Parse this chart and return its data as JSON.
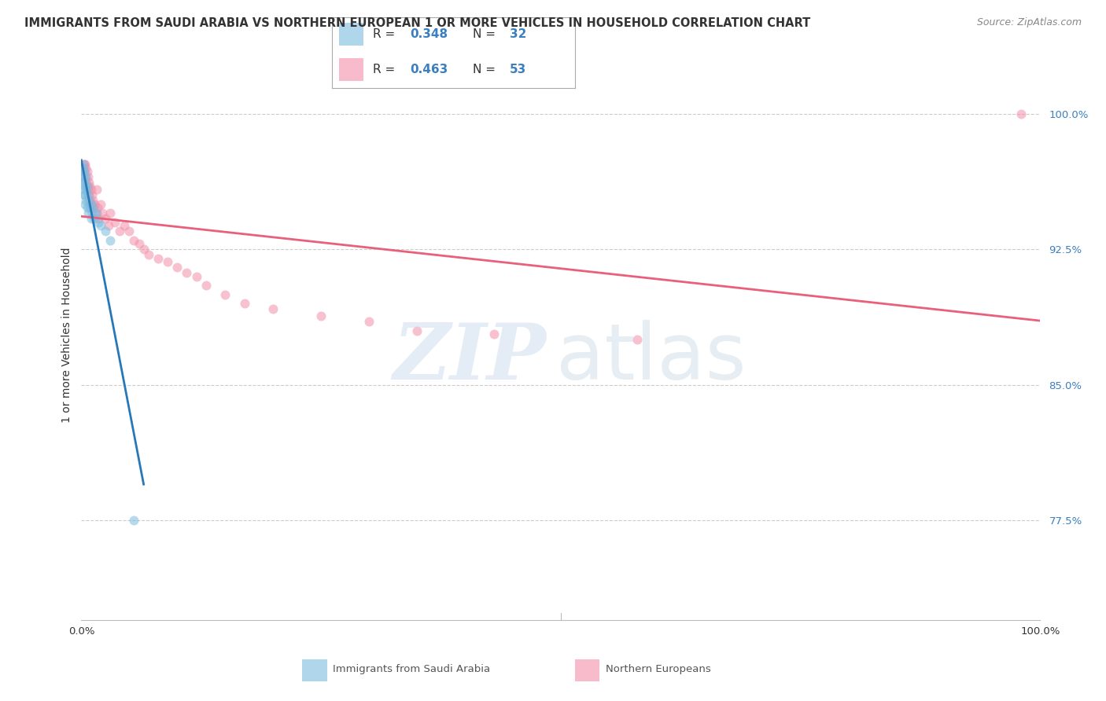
{
  "title": "IMMIGRANTS FROM SAUDI ARABIA VS NORTHERN EUROPEAN 1 OR MORE VEHICLES IN HOUSEHOLD CORRELATION CHART",
  "source": "Source: ZipAtlas.com",
  "ylabel": "1 or more Vehicles in Household",
  "ytick_labels": [
    "77.5%",
    "85.0%",
    "92.5%",
    "100.0%"
  ],
  "ytick_values": [
    0.775,
    0.85,
    0.925,
    1.0
  ],
  "xlim": [
    0.0,
    1.0
  ],
  "ylim": [
    0.72,
    1.035
  ],
  "watermark_zip": "ZIP",
  "watermark_atlas": "atlas",
  "saudi_x": [
    0.001,
    0.001,
    0.002,
    0.002,
    0.002,
    0.003,
    0.003,
    0.003,
    0.003,
    0.004,
    0.004,
    0.004,
    0.005,
    0.005,
    0.005,
    0.006,
    0.006,
    0.007,
    0.007,
    0.008,
    0.009,
    0.01,
    0.01,
    0.011,
    0.012,
    0.014,
    0.016,
    0.018,
    0.02,
    0.025,
    0.03,
    0.055
  ],
  "saudi_y": [
    0.97,
    0.968,
    0.972,
    0.965,
    0.963,
    0.968,
    0.962,
    0.958,
    0.955,
    0.96,
    0.955,
    0.95,
    0.965,
    0.958,
    0.952,
    0.96,
    0.948,
    0.955,
    0.945,
    0.952,
    0.948,
    0.95,
    0.942,
    0.945,
    0.948,
    0.942,
    0.945,
    0.94,
    0.938,
    0.935,
    0.93,
    0.775
  ],
  "northern_x": [
    0.002,
    0.003,
    0.003,
    0.004,
    0.004,
    0.005,
    0.005,
    0.006,
    0.006,
    0.007,
    0.007,
    0.008,
    0.008,
    0.009,
    0.009,
    0.01,
    0.01,
    0.011,
    0.012,
    0.013,
    0.014,
    0.015,
    0.016,
    0.017,
    0.018,
    0.02,
    0.022,
    0.025,
    0.028,
    0.03,
    0.035,
    0.04,
    0.045,
    0.05,
    0.055,
    0.06,
    0.065,
    0.07,
    0.08,
    0.09,
    0.1,
    0.11,
    0.12,
    0.13,
    0.15,
    0.17,
    0.2,
    0.25,
    0.3,
    0.35,
    0.43,
    0.58,
    0.98
  ],
  "northern_y": [
    0.97,
    0.972,
    0.968,
    0.972,
    0.965,
    0.97,
    0.963,
    0.968,
    0.96,
    0.965,
    0.958,
    0.962,
    0.955,
    0.96,
    0.952,
    0.958,
    0.95,
    0.955,
    0.952,
    0.948,
    0.95,
    0.945,
    0.958,
    0.948,
    0.942,
    0.95,
    0.945,
    0.942,
    0.938,
    0.945,
    0.94,
    0.935,
    0.938,
    0.935,
    0.93,
    0.928,
    0.925,
    0.922,
    0.92,
    0.918,
    0.915,
    0.912,
    0.91,
    0.905,
    0.9,
    0.895,
    0.892,
    0.888,
    0.885,
    0.88,
    0.878,
    0.875,
    1.0
  ],
  "saudi_color": "#7bbcde",
  "northern_color": "#f48faa",
  "saudi_line_color": "#2878b8",
  "northern_line_color": "#e8607a",
  "dot_size": 75,
  "dot_alpha": 0.55,
  "grid_color": "#cccccc",
  "background_color": "#ffffff",
  "title_fontsize": 10.5,
  "source_fontsize": 9,
  "ylabel_fontsize": 10,
  "tick_fontsize": 9.5,
  "right_tick_color": "#3a7fbf",
  "bottom_legend_labels": [
    "Immigrants from Saudi Arabia",
    "Northern Europeans"
  ]
}
